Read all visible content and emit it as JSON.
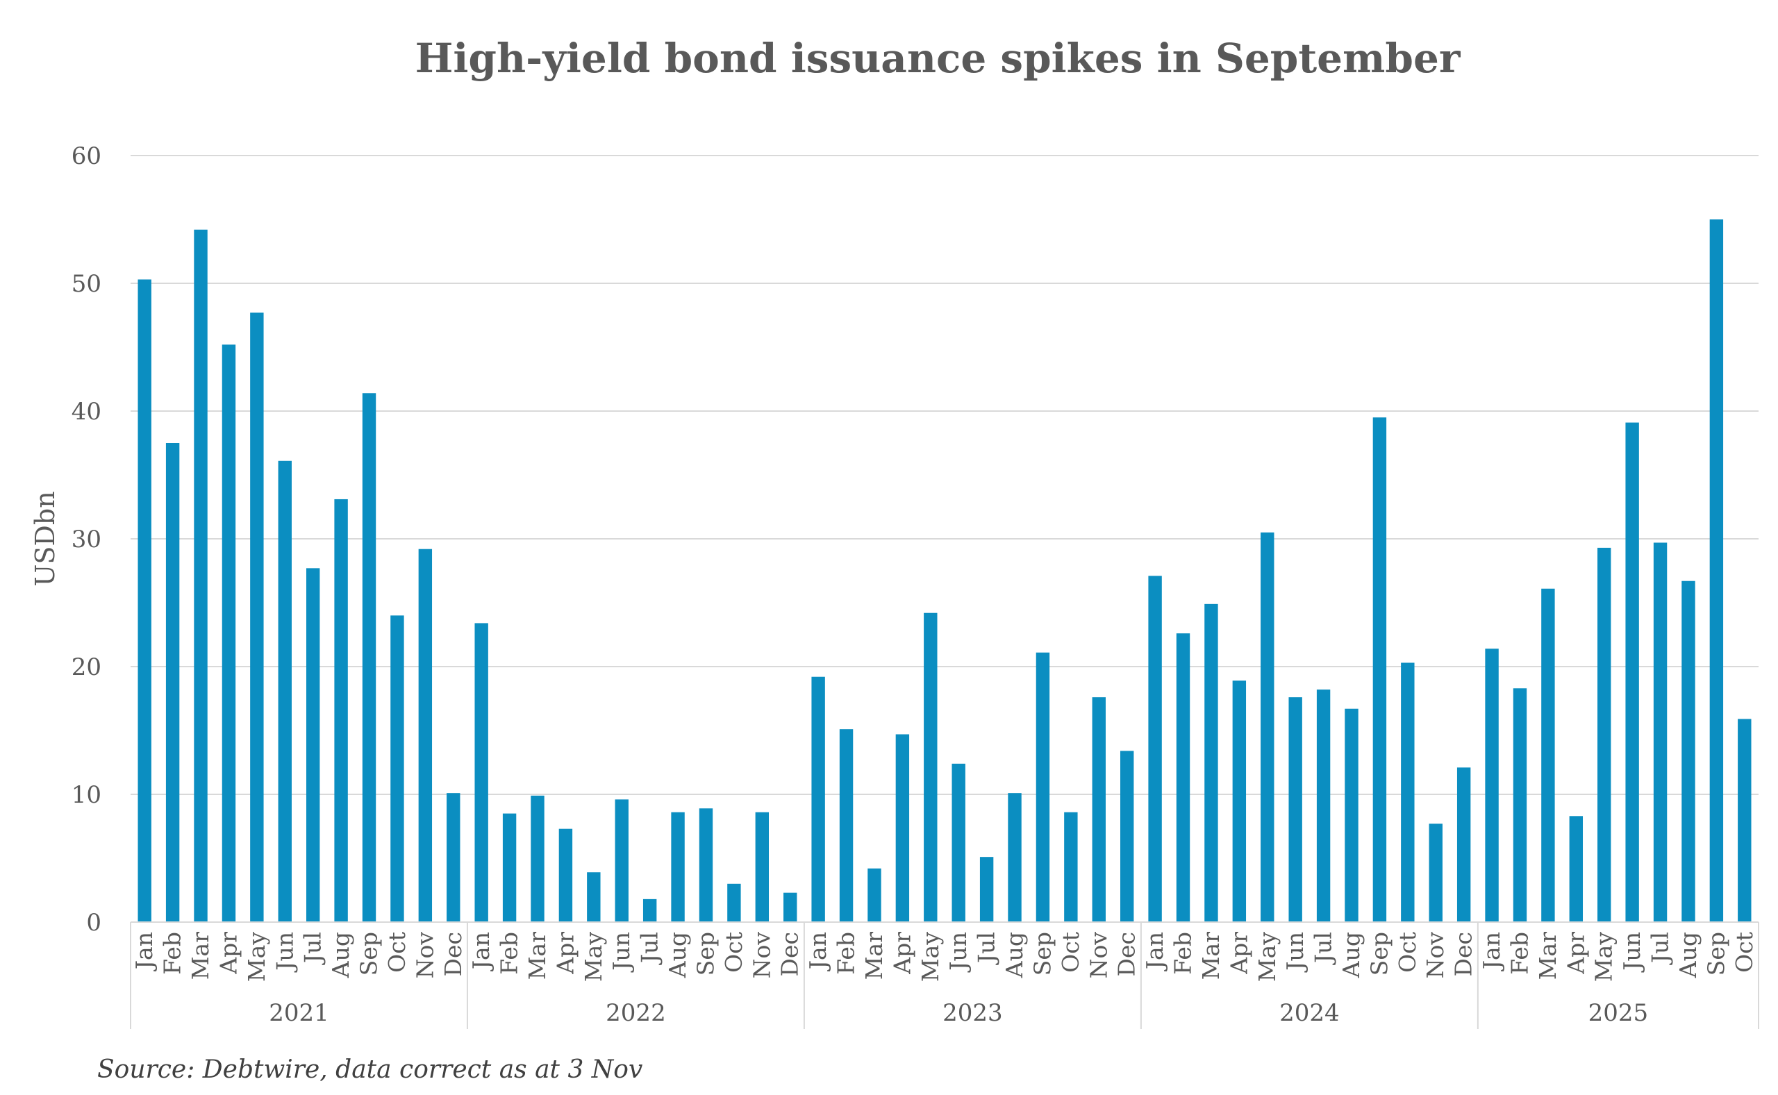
{
  "colors": {
    "bar": "#0b8ec1",
    "grid": "#d9d9d9",
    "text": "#595959"
  },
  "footer": {
    "source": "Source: Debtwire, data correct as at 3 Nov"
  },
  "chart_data": {
    "type": "bar",
    "title": "High-yield bond issuance spikes in September",
    "xlabel": "",
    "ylabel": "USDbn",
    "ylim": [
      0,
      60
    ],
    "yticks": [
      0,
      10,
      20,
      30,
      40,
      50,
      60
    ],
    "grid": true,
    "legend": "none",
    "groups": [
      {
        "year": "2021",
        "categories": [
          "Jan",
          "Feb",
          "Mar",
          "Apr",
          "May",
          "Jun",
          "Jul",
          "Aug",
          "Sep",
          "Oct",
          "Nov",
          "Dec"
        ],
        "values": [
          50.3,
          37.5,
          54.2,
          45.2,
          47.7,
          36.1,
          27.7,
          33.1,
          41.4,
          24.0,
          29.2,
          10.1
        ]
      },
      {
        "year": "2022",
        "categories": [
          "Jan",
          "Feb",
          "Mar",
          "Apr",
          "May",
          "Jun",
          "Jul",
          "Aug",
          "Sep",
          "Oct",
          "Nov",
          "Dec"
        ],
        "values": [
          23.4,
          8.5,
          9.9,
          7.3,
          3.9,
          9.6,
          1.8,
          8.6,
          8.9,
          3.0,
          8.6,
          2.3
        ]
      },
      {
        "year": "2023",
        "categories": [
          "Jan",
          "Feb",
          "Mar",
          "Apr",
          "May",
          "Jun",
          "Jul",
          "Aug",
          "Sep",
          "Oct",
          "Nov",
          "Dec"
        ],
        "values": [
          19.2,
          15.1,
          4.2,
          14.7,
          24.2,
          12.4,
          5.1,
          10.1,
          21.1,
          8.6,
          17.6,
          13.4
        ]
      },
      {
        "year": "2024",
        "categories": [
          "Jan",
          "Feb",
          "Mar",
          "Apr",
          "May",
          "Jun",
          "Jul",
          "Aug",
          "Sep",
          "Oct",
          "Nov",
          "Dec"
        ],
        "values": [
          27.1,
          22.6,
          24.9,
          18.9,
          30.5,
          17.6,
          18.2,
          16.7,
          39.5,
          20.3,
          7.7,
          12.1
        ]
      },
      {
        "year": "2025",
        "categories": [
          "Jan",
          "Feb",
          "Mar",
          "Apr",
          "May",
          "Jun",
          "Jul",
          "Aug",
          "Sep",
          "Oct"
        ],
        "values": [
          21.4,
          18.3,
          26.1,
          8.3,
          29.3,
          39.1,
          29.7,
          26.7,
          55.0,
          15.9
        ]
      }
    ]
  }
}
